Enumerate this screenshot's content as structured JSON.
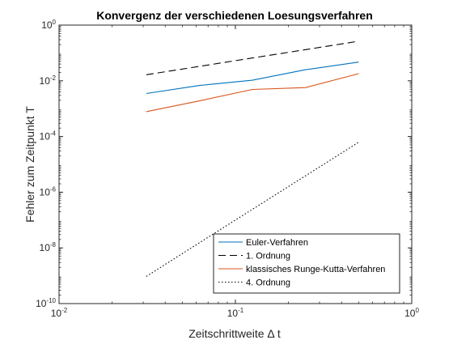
{
  "chart_data": {
    "type": "line",
    "title": "Konvergenz der verschiedenen Loesungsverfahren",
    "xlabel": "Zeitschrittweite Δ t",
    "ylabel": "Fehler zum Zeitpunkt T",
    "xscale": "log",
    "yscale": "log",
    "xlim": [
      0.01,
      1
    ],
    "ylim": [
      1e-10,
      1
    ],
    "grid": false,
    "legend_position": "bottom-right",
    "x_ticks": [
      {
        "base": "10",
        "exp": "-2"
      },
      {
        "base": "10",
        "exp": "-1"
      },
      {
        "base": "10",
        "exp": "0"
      }
    ],
    "y_ticks": [
      {
        "base": "10",
        "exp": "-10"
      },
      {
        "base": "10",
        "exp": "-8"
      },
      {
        "base": "10",
        "exp": "-6"
      },
      {
        "base": "10",
        "exp": "-4"
      },
      {
        "base": "10",
        "exp": "-2"
      },
      {
        "base": "10",
        "exp": "0"
      }
    ],
    "x": [
      0.03125,
      0.0625,
      0.125,
      0.25,
      0.5
    ],
    "series": [
      {
        "name": "Euler-Verfahren",
        "color": "#0072BD",
        "style": "solid",
        "values": [
          0.0035,
          0.0068,
          0.0105,
          0.025,
          0.047
        ]
      },
      {
        "name": "1. Ordnung",
        "color": "#000000",
        "style": "dashed",
        "values": [
          0.0165,
          0.033,
          0.066,
          0.132,
          0.264
        ]
      },
      {
        "name": "klassisches Runge-Kutta-Verfahren",
        "color": "#D95319",
        "style": "solid",
        "values": [
          0.00078,
          0.0019,
          0.0049,
          0.0057,
          0.018
        ]
      },
      {
        "name": "4. Ordnung",
        "color": "#000000",
        "style": "dotted",
        "values": [
          9.5e-10,
          1.52e-08,
          2.43e-07,
          3.89e-06,
          6.2e-05
        ]
      }
    ]
  }
}
